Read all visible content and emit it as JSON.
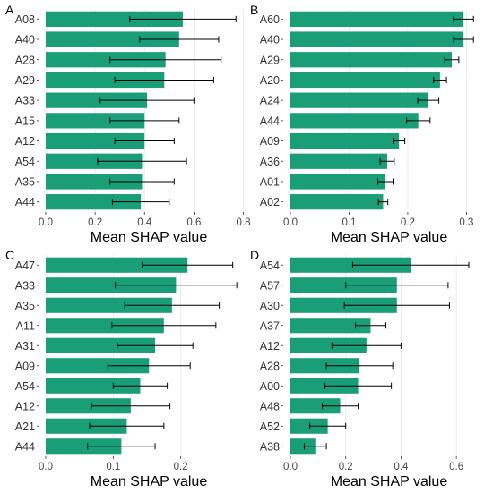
{
  "style": {
    "bar_color": "#1a9e77",
    "error_bar_color": "#000000",
    "grid_color": "#ebebeb"
  },
  "chart_data": [
    {
      "panel": "A",
      "type": "bar",
      "orientation": "horizontal",
      "xlabel": "Mean SHAP value",
      "xlim": [
        0,
        0.82
      ],
      "xticks": [
        0.0,
        0.2,
        0.4,
        0.6,
        0.8
      ],
      "xtick_labels": [
        "0.0",
        "0.2",
        "0.4",
        "0.6",
        "0.8"
      ],
      "categories": [
        "A08",
        "A40",
        "A28",
        "A29",
        "A33",
        "A15",
        "A12",
        "A54",
        "A35",
        "A44"
      ],
      "values": [
        0.555,
        0.54,
        0.485,
        0.48,
        0.41,
        0.4,
        0.4,
        0.39,
        0.39,
        0.385
      ],
      "errors": [
        0.215,
        0.16,
        0.225,
        0.2,
        0.19,
        0.14,
        0.12,
        0.18,
        0.13,
        0.115
      ]
    },
    {
      "panel": "B",
      "type": "bar",
      "orientation": "horizontal",
      "xlabel": "Mean SHAP value",
      "xlim": [
        0,
        0.33
      ],
      "xticks": [
        0.0,
        0.1,
        0.2,
        0.3
      ],
      "xtick_labels": [
        "0.0",
        "0.1",
        "0.2",
        "0.3"
      ],
      "categories": [
        "A60",
        "A40",
        "A29",
        "A20",
        "A24",
        "A44",
        "A09",
        "A36",
        "A01",
        "A02"
      ],
      "values": [
        0.295,
        0.295,
        0.275,
        0.255,
        0.235,
        0.218,
        0.185,
        0.165,
        0.162,
        0.158
      ],
      "errors": [
        0.017,
        0.017,
        0.012,
        0.011,
        0.018,
        0.02,
        0.01,
        0.012,
        0.013,
        0.008
      ]
    },
    {
      "panel": "C",
      "type": "bar",
      "orientation": "horizontal",
      "xlabel": "Mean SHAP value",
      "xlim": [
        0,
        0.3
      ],
      "xticks": [
        0.0,
        0.1,
        0.2
      ],
      "xtick_labels": [
        "0.0",
        "0.1",
        "0.2"
      ],
      "categories": [
        "A47",
        "A33",
        "A35",
        "A11",
        "A31",
        "A09",
        "A54",
        "A12",
        "A21",
        "A44"
      ],
      "values": [
        0.21,
        0.193,
        0.187,
        0.175,
        0.162,
        0.153,
        0.14,
        0.126,
        0.12,
        0.112
      ],
      "errors": [
        0.067,
        0.09,
        0.07,
        0.077,
        0.056,
        0.061,
        0.04,
        0.058,
        0.055,
        0.05
      ]
    },
    {
      "panel": "D",
      "type": "bar",
      "orientation": "horizontal",
      "xlabel": "Mean SHAP value",
      "xlim": [
        0,
        0.7
      ],
      "xticks": [
        0.0,
        0.2,
        0.4,
        0.6
      ],
      "xtick_labels": [
        "0.0",
        "0.2",
        "0.4",
        "0.6"
      ],
      "categories": [
        "A54",
        "A57",
        "A30",
        "A37",
        "A12",
        "A28",
        "A00",
        "A48",
        "A52",
        "A38"
      ],
      "values": [
        0.435,
        0.385,
        0.385,
        0.29,
        0.275,
        0.25,
        0.245,
        0.18,
        0.135,
        0.09
      ],
      "errors": [
        0.21,
        0.185,
        0.19,
        0.055,
        0.125,
        0.12,
        0.12,
        0.065,
        0.065,
        0.04
      ]
    }
  ]
}
